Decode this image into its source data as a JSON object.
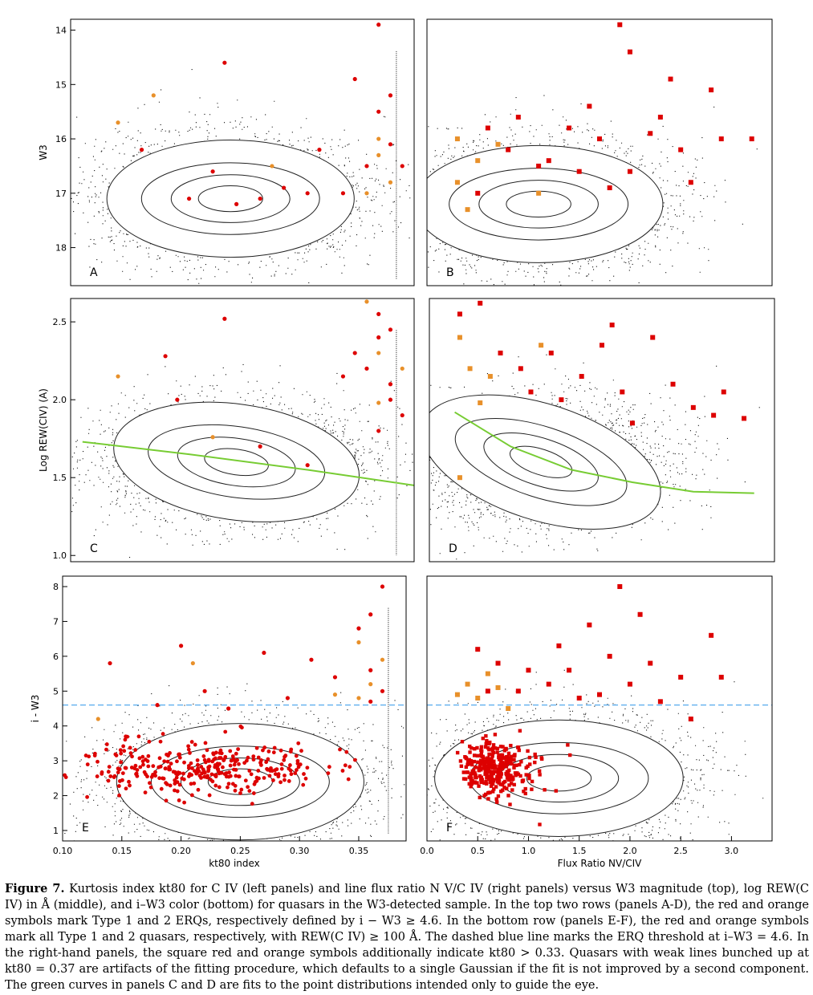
{
  "chart_data": [
    {
      "panel": "A",
      "type": "scatter",
      "xlim": [
        0.1,
        0.39
      ],
      "ylim": [
        18.7,
        13.8
      ],
      "yticks": [
        14,
        15,
        16,
        17,
        18
      ],
      "yticklabels": [
        "14",
        "15",
        "16",
        "17",
        "18"
      ],
      "xticks": [],
      "xticklabels": [],
      "xlabel": "",
      "ylabel": "W3",
      "contour_center": [
        0.235,
        17.1
      ],
      "red_points": [
        [
          0.26,
          17.1
        ],
        [
          0.3,
          17.0
        ],
        [
          0.33,
          17.0
        ],
        [
          0.22,
          16.6
        ],
        [
          0.24,
          17.2
        ],
        [
          0.2,
          17.1
        ],
        [
          0.35,
          16.5
        ],
        [
          0.28,
          16.9
        ],
        [
          0.36,
          15.5
        ],
        [
          0.37,
          16.1
        ],
        [
          0.34,
          14.9
        ],
        [
          0.36,
          13.9
        ],
        [
          0.37,
          15.2
        ],
        [
          0.38,
          16.5
        ],
        [
          0.23,
          14.6
        ],
        [
          0.16,
          16.2
        ],
        [
          0.31,
          16.2
        ]
      ],
      "orange_points": [
        [
          0.36,
          16.3
        ],
        [
          0.35,
          17.0
        ],
        [
          0.37,
          16.8
        ],
        [
          0.14,
          15.7
        ],
        [
          0.17,
          15.2
        ],
        [
          0.27,
          16.5
        ],
        [
          0.36,
          16.0
        ]
      ]
    },
    {
      "panel": "B",
      "type": "scatter",
      "xlim": [
        0.0,
        3.4
      ],
      "ylim": [
        18.7,
        13.8
      ],
      "yticks": [],
      "yticklabels": [],
      "xticks": [],
      "xticklabels": [],
      "xlabel": "",
      "ylabel": "",
      "contour_center": [
        1.1,
        17.2
      ],
      "red_points": [
        [
          0.6,
          15.8
        ],
        [
          1.2,
          16.4
        ],
        [
          1.6,
          15.4
        ],
        [
          2.0,
          14.4
        ],
        [
          2.3,
          15.6
        ],
        [
          1.7,
          16.0
        ],
        [
          2.6,
          16.8
        ],
        [
          1.5,
          16.6
        ],
        [
          2.9,
          16.0
        ],
        [
          0.8,
          16.2
        ],
        [
          1.9,
          13.9
        ],
        [
          2.2,
          15.9
        ],
        [
          1.1,
          16.5
        ],
        [
          2.8,
          15.1
        ],
        [
          0.5,
          17.0
        ],
        [
          2.0,
          16.6
        ],
        [
          1.4,
          15.8
        ],
        [
          3.2,
          16.0
        ],
        [
          2.5,
          16.2
        ],
        [
          1.8,
          16.9
        ],
        [
          0.9,
          15.6
        ],
        [
          2.4,
          14.9
        ]
      ],
      "orange_points": [
        [
          0.3,
          16.8
        ],
        [
          0.4,
          17.3
        ],
        [
          0.7,
          16.1
        ],
        [
          0.5,
          16.4
        ],
        [
          1.1,
          17.0
        ],
        [
          0.3,
          16.0
        ]
      ]
    },
    {
      "panel": "C",
      "type": "scatter",
      "xlim": [
        0.1,
        0.39
      ],
      "ylim": [
        0.96,
        2.65
      ],
      "yticks": [
        1.0,
        1.5,
        2.0,
        2.5
      ],
      "yticklabels": [
        "1.0",
        "1.5",
        "2.0",
        "2.5"
      ],
      "xticks": [],
      "xticklabels": [],
      "xlabel": "",
      "ylabel": "Log REW(CIV) (A)",
      "fit_curve": [
        [
          0.11,
          1.73
        ],
        [
          0.2,
          1.65
        ],
        [
          0.3,
          1.55
        ],
        [
          0.39,
          1.45
        ]
      ],
      "contour_center": [
        0.24,
        1.6
      ],
      "red_points": [
        [
          0.23,
          2.52
        ],
        [
          0.18,
          2.28
        ],
        [
          0.36,
          2.4
        ],
        [
          0.37,
          2.1
        ],
        [
          0.36,
          1.8
        ],
        [
          0.37,
          2.0
        ],
        [
          0.34,
          2.3
        ],
        [
          0.3,
          1.58
        ],
        [
          0.26,
          1.7
        ],
        [
          0.35,
          2.2
        ],
        [
          0.36,
          2.55
        ],
        [
          0.33,
          2.15
        ],
        [
          0.19,
          2.0
        ],
        [
          0.38,
          1.9
        ],
        [
          0.37,
          2.45
        ]
      ],
      "orange_points": [
        [
          0.35,
          2.63
        ],
        [
          0.36,
          2.3
        ],
        [
          0.38,
          2.2
        ],
        [
          0.14,
          2.15
        ],
        [
          0.22,
          1.76
        ],
        [
          0.36,
          1.98
        ]
      ]
    },
    {
      "panel": "D",
      "type": "scatter",
      "xlim": [
        0.0,
        3.4
      ],
      "ylim": [
        0.96,
        2.65
      ],
      "yticks": [],
      "yticklabels": [],
      "xticks": [],
      "xticklabels": [],
      "xlabel": "",
      "ylabel": "",
      "fit_curve": [
        [
          0.25,
          1.92
        ],
        [
          0.8,
          1.7
        ],
        [
          1.4,
          1.55
        ],
        [
          2.0,
          1.47
        ],
        [
          2.6,
          1.41
        ],
        [
          3.2,
          1.4
        ]
      ],
      "contour_center": [
        1.1,
        1.6
      ],
      "red_points": [
        [
          0.5,
          2.62
        ],
        [
          0.3,
          2.55
        ],
        [
          1.2,
          2.3
        ],
        [
          1.9,
          2.05
        ],
        [
          2.2,
          2.4
        ],
        [
          2.8,
          1.9
        ],
        [
          1.5,
          2.15
        ],
        [
          1.7,
          2.35
        ],
        [
          2.4,
          2.1
        ],
        [
          1.0,
          2.05
        ],
        [
          3.1,
          1.88
        ],
        [
          0.7,
          2.3
        ],
        [
          2.0,
          1.85
        ],
        [
          1.3,
          2.0
        ],
        [
          2.6,
          1.95
        ],
        [
          1.8,
          2.48
        ],
        [
          0.9,
          2.2
        ],
        [
          2.9,
          2.05
        ]
      ],
      "orange_points": [
        [
          0.3,
          2.4
        ],
        [
          0.4,
          2.2
        ],
        [
          0.6,
          2.15
        ],
        [
          1.1,
          2.35
        ],
        [
          0.3,
          1.5
        ],
        [
          0.5,
          1.98
        ]
      ]
    },
    {
      "panel": "E",
      "type": "scatter",
      "xlim": [
        0.1,
        0.39
      ],
      "ylim": [
        0.7,
        8.3
      ],
      "yticks": [
        1,
        2,
        3,
        4,
        5,
        6,
        7,
        8
      ],
      "yticklabels": [
        "1",
        "2",
        "3",
        "4",
        "5",
        "6",
        "7",
        "8"
      ],
      "xticks": [
        0.1,
        0.15,
        0.2,
        0.25,
        0.3,
        0.35
      ],
      "xticklabels": [
        "0.10",
        "0.15",
        "0.20",
        "0.25",
        "0.30",
        "0.35"
      ],
      "xlabel": "kt80 index",
      "ylabel": "i - W3",
      "threshold": 4.6,
      "contour_center": [
        0.25,
        2.4
      ],
      "red_points": [
        [
          0.37,
          8.0
        ],
        [
          0.36,
          7.2
        ],
        [
          0.35,
          6.8
        ],
        [
          0.2,
          6.3
        ],
        [
          0.27,
          6.1
        ],
        [
          0.14,
          5.8
        ],
        [
          0.31,
          5.9
        ],
        [
          0.36,
          5.6
        ],
        [
          0.37,
          5.0
        ],
        [
          0.33,
          5.4
        ],
        [
          0.22,
          5.0
        ],
        [
          0.29,
          4.8
        ],
        [
          0.36,
          4.7
        ],
        [
          0.24,
          4.5
        ],
        [
          0.18,
          4.6
        ]
      ],
      "orange_points": [
        [
          0.35,
          6.4
        ],
        [
          0.37,
          5.9
        ],
        [
          0.36,
          5.2
        ],
        [
          0.33,
          4.9
        ],
        [
          0.21,
          5.8
        ],
        [
          0.13,
          4.2
        ],
        [
          0.35,
          4.8
        ]
      ]
    },
    {
      "panel": "F",
      "type": "scatter",
      "xlim": [
        0.0,
        3.4
      ],
      "ylim": [
        0.7,
        8.3
      ],
      "yticks": [],
      "yticklabels": [],
      "xticks": [
        0.0,
        0.5,
        1.0,
        1.5,
        2.0,
        2.5,
        3.0
      ],
      "xticklabels": [
        "0.0",
        "0.5",
        "1.0",
        "1.5",
        "2.0",
        "2.5",
        "3.0"
      ],
      "xlabel": "Flux Ratio NV/CIV",
      "ylabel": "",
      "threshold": 4.6,
      "contour_center": [
        1.3,
        2.5
      ],
      "red_points": [
        [
          1.9,
          8.0
        ],
        [
          2.1,
          7.2
        ],
        [
          1.6,
          6.9
        ],
        [
          2.8,
          6.6
        ],
        [
          1.3,
          6.3
        ],
        [
          0.5,
          6.2
        ],
        [
          1.8,
          6.0
        ],
        [
          2.2,
          5.8
        ],
        [
          1.0,
          5.6
        ],
        [
          2.5,
          5.4
        ],
        [
          0.7,
          5.8
        ],
        [
          1.4,
          5.6
        ],
        [
          2.0,
          5.2
        ],
        [
          0.9,
          5.0
        ],
        [
          2.9,
          5.4
        ],
        [
          1.7,
          4.9
        ],
        [
          2.3,
          4.7
        ],
        [
          0.6,
          5.0
        ],
        [
          1.2,
          5.2
        ],
        [
          2.6,
          4.2
        ],
        [
          1.5,
          4.8
        ]
      ],
      "orange_points": [
        [
          0.4,
          5.2
        ],
        [
          0.6,
          5.5
        ],
        [
          0.5,
          4.8
        ],
        [
          0.3,
          4.9
        ],
        [
          0.8,
          4.5
        ],
        [
          0.7,
          5.1
        ]
      ]
    }
  ],
  "caption": {
    "label": "Figure 7.",
    "text": "Kurtosis index kt80 for C IV (left panels) and line flux ratio N V/C IV (right panels) versus W3 magnitude (top), log REW(C IV) in Å (middle), and i–W3 color (bottom) for quasars in the W3-detected sample. In the top two rows (panels A-D), the red and orange symbols mark Type 1 and 2 ERQs, respectively defined by i − W3 ≥ 4.6. In the bottom row (panels E-F), the red and orange symbols mark all Type 1 and 2 quasars, respectively, with REW(C IV) ≥ 100 Å. The dashed blue line marks the ERQ threshold at i–W3 = 4.6. In the right-hand panels, the square red and orange symbols additionally indicate kt80 > 0.33. Quasars with weak lines bunched up at kt80 = 0.37 are artifacts of the fitting procedure, which defaults to a single Gaussian if the fit is not improved by a second component. The green curves in panels C and D are fits to the point distributions intended only to guide the eye."
  },
  "colors": {
    "red": "#dd0000",
    "orange": "#e8902a",
    "green": "#77cc33",
    "threshold": "#55aaee",
    "dots": "#111111"
  }
}
